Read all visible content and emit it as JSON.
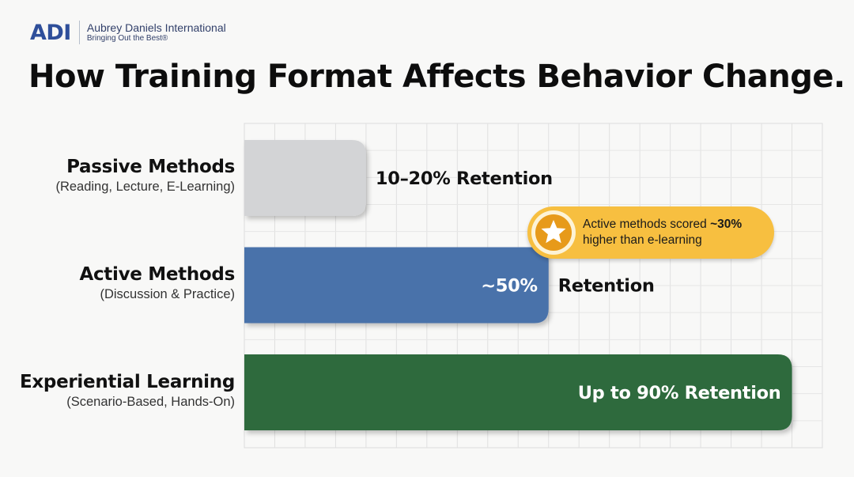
{
  "header": {
    "logo_text": "ADI",
    "company_name": "Aubrey Daniels International",
    "tagline": "Bringing Out the Best®"
  },
  "title": "How Training Format Affects Behavior Change.",
  "callout": {
    "prefix": "Active methods scored ",
    "highlight": "~30%",
    "suffix": " higher than e-learning"
  },
  "colors": {
    "passive": "#d3d4d6",
    "active": "#4a72aa",
    "experiential": "#2e6b3d",
    "callout": "#f7bf40",
    "logo": "#2f4f9a"
  },
  "icons": [
    "star-icon"
  ],
  "chart_data": {
    "type": "bar",
    "orientation": "horizontal",
    "title": "How Training Format Affects Behavior Change.",
    "value_unit": "% Retention",
    "grid": true,
    "categories": [
      {
        "name": "Passive Methods",
        "detail": "(Reading, Lecture, E-Learning)"
      },
      {
        "name": "Active Methods",
        "detail": "(Discussion & Practice)"
      },
      {
        "name": "Experiential Learning",
        "detail": "(Scenario-Based, Hands-On)"
      }
    ],
    "values": [
      20,
      50,
      90
    ],
    "value_ranges": [
      [
        10,
        20
      ],
      [
        50,
        50
      ],
      [
        90,
        90
      ]
    ],
    "xlim": [
      0,
      95
    ],
    "data_labels": [
      {
        "inside": "",
        "outside": "10–20% Retention"
      },
      {
        "inside": "~50%",
        "outside": "Retention"
      },
      {
        "inside": "Up to 90% Retention",
        "outside": ""
      }
    ]
  }
}
